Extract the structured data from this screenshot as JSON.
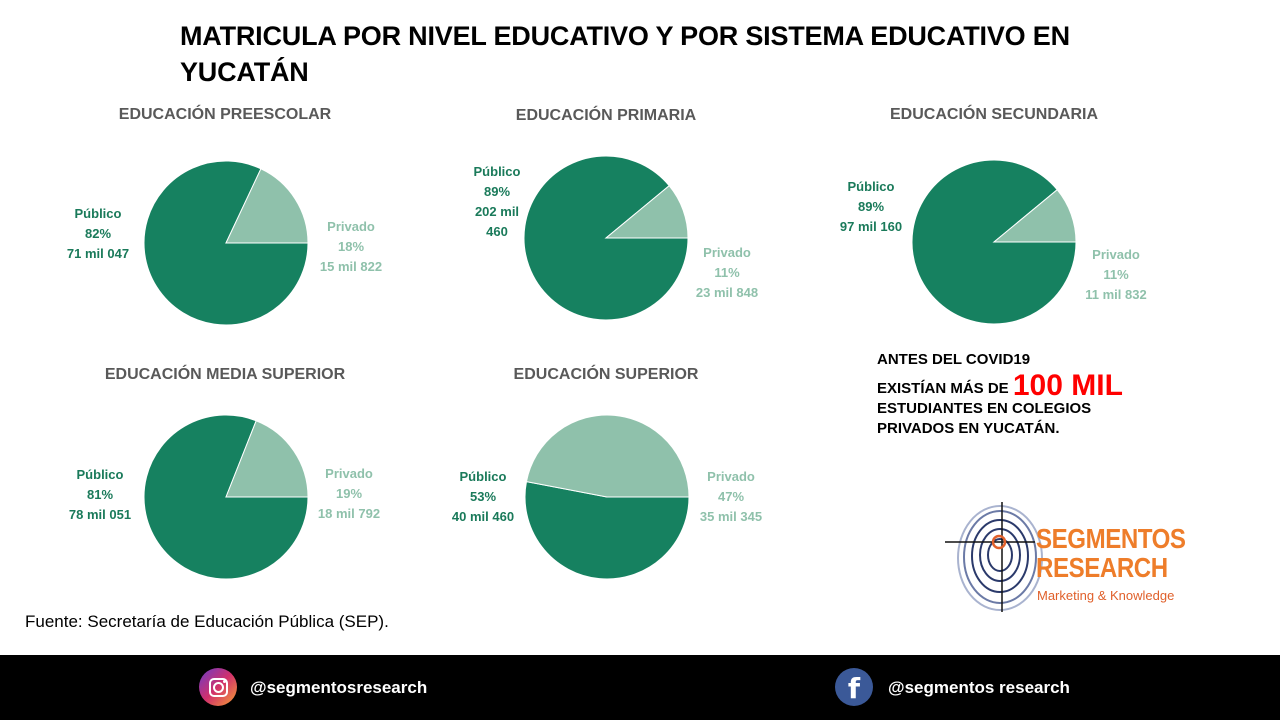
{
  "title": "MATRICULA POR NIVEL EDUCATIVO Y POR SISTEMA EDUCATIVO EN YUCATÁN",
  "colors": {
    "publico": "#168160",
    "privado": "#8fc1ab"
  },
  "chart_data": [
    {
      "type": "pie",
      "title": "EDUCACIÓN PREESCOLAR",
      "slices": [
        {
          "name": "Público",
          "percent": "82%",
          "amount": "71 mil 047",
          "value": 82
        },
        {
          "name": "Privado",
          "percent": "18%",
          "amount": "15 mil 822",
          "value": 18
        }
      ]
    },
    {
      "type": "pie",
      "title": "EDUCACIÓN PRIMARIA",
      "slices": [
        {
          "name": "Público",
          "percent": "89%",
          "amount": "202 mil 460",
          "value": 89
        },
        {
          "name": "Privado",
          "percent": "11%",
          "amount": "23 mil 848",
          "value": 11
        }
      ]
    },
    {
      "type": "pie",
      "title": "EDUCACIÓN SECUNDARIA",
      "slices": [
        {
          "name": "Público",
          "percent": "89%",
          "amount": "97 mil 160",
          "value": 89
        },
        {
          "name": "Privado",
          "percent": "11%",
          "amount": "11 mil 832",
          "value": 11
        }
      ]
    },
    {
      "type": "pie",
      "title": "EDUCACIÓN MEDIA SUPERIOR",
      "slices": [
        {
          "name": "Público",
          "percent": "81%",
          "amount": "78 mil 051",
          "value": 81
        },
        {
          "name": "Privado",
          "percent": "19%",
          "amount": "18 mil 792",
          "value": 19
        }
      ]
    },
    {
      "type": "pie",
      "title": "EDUCACIÓN SUPERIOR",
      "slices": [
        {
          "name": "Público",
          "percent": "53%",
          "amount": "40 mil 460",
          "value": 53
        },
        {
          "name": "Privado",
          "percent": "47%",
          "amount": "35 mil 345",
          "value": 47
        }
      ]
    }
  ],
  "note": {
    "line1": "ANTES DEL COVID19",
    "line2_prefix": "EXISTÍAN MÁS DE",
    "highlight": "100 MIL",
    "line3": "ESTUDIANTES EN COLEGIOS",
    "line4": "PRIVADOS  EN YUCATÁN."
  },
  "source": "Fuente: Secretaría de Educación Pública (SEP).",
  "logo": {
    "line1": "SEGMENTOS",
    "line2": "RESEARCH",
    "tagline": "Marketing & Knowledge"
  },
  "footer": {
    "instagram": "@segmentosresearch",
    "instagram_icon": "instagram-icon",
    "facebook": "@segmentos research",
    "facebook_icon": "facebook-icon"
  }
}
